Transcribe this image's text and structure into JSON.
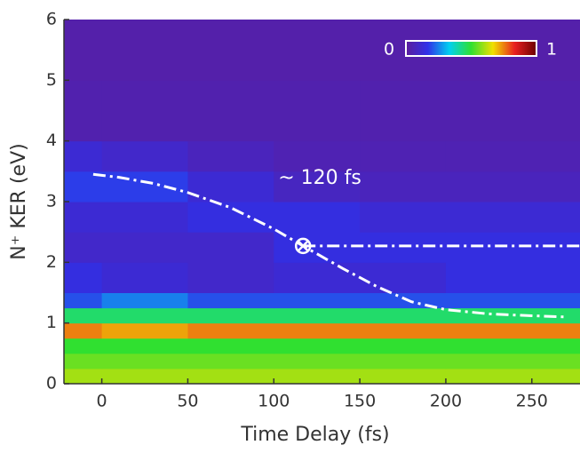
{
  "chart_data": {
    "type": "heatmap",
    "xlabel": "Time Delay (fs)",
    "ylabel": "N⁺ KER (eV)",
    "xlim": [
      -22,
      278
    ],
    "ylim": [
      0,
      6
    ],
    "xticks": [
      0,
      50,
      100,
      150,
      200,
      250
    ],
    "yticks": [
      0,
      1,
      2,
      3,
      4,
      5,
      6
    ],
    "x_bins": [
      -22,
      0,
      50,
      100,
      150,
      200,
      278
    ],
    "y_bins": [
      0,
      0.25,
      0.5,
      0.75,
      1,
      1.25,
      1.5,
      2,
      2.5,
      3,
      3.5,
      4,
      5,
      6
    ],
    "z": [
      [
        0.6,
        0.6,
        0.6,
        0.6,
        0.6,
        0.6
      ],
      [
        0.55,
        0.55,
        0.55,
        0.55,
        0.55,
        0.55
      ],
      [
        0.5,
        0.5,
        0.5,
        0.5,
        0.5,
        0.5
      ],
      [
        0.75,
        0.72,
        0.75,
        0.75,
        0.75,
        0.75
      ],
      [
        0.45,
        0.45,
        0.45,
        0.45,
        0.45,
        0.45
      ],
      [
        0.2,
        0.25,
        0.2,
        0.2,
        0.2,
        0.2
      ],
      [
        0.15,
        0.12,
        0.1,
        0.12,
        0.12,
        0.15
      ],
      [
        0.1,
        0.1,
        0.1,
        0.15,
        0.15,
        0.15
      ],
      [
        0.12,
        0.12,
        0.15,
        0.15,
        0.12,
        0.12
      ],
      [
        0.18,
        0.18,
        0.12,
        0.08,
        0.07,
        0.07
      ],
      [
        0.12,
        0.1,
        0.07,
        0.05,
        0.05,
        0.05
      ],
      [
        0.04,
        0.04,
        0.04,
        0.04,
        0.04,
        0.04
      ],
      [
        0.03,
        0.03,
        0.03,
        0.03,
        0.03,
        0.03
      ]
    ],
    "colormap": [
      "#5c1c9c",
      "#3030e8",
      "#00d0f0",
      "#30e030",
      "#f0e000",
      "#e82020",
      "#6a0000"
    ],
    "colorbar_ticks": [
      0,
      1
    ],
    "series": [
      {
        "x": [
          -5,
          10,
          30,
          50,
          75,
          100,
          117,
          140,
          160,
          180,
          200,
          225,
          250,
          270
        ],
        "values": [
          3.45,
          3.4,
          3.3,
          3.15,
          2.9,
          2.55,
          2.27,
          1.9,
          1.6,
          1.35,
          1.22,
          1.15,
          1.12,
          1.1
        ],
        "color": "#ffffff"
      },
      {
        "x": [
          117,
          278
        ],
        "values": [
          2.27,
          2.27
        ],
        "color": "#ffffff"
      }
    ],
    "marker": {
      "x": 117,
      "y": 2.27
    },
    "annotation": "~ 120 fs"
  }
}
